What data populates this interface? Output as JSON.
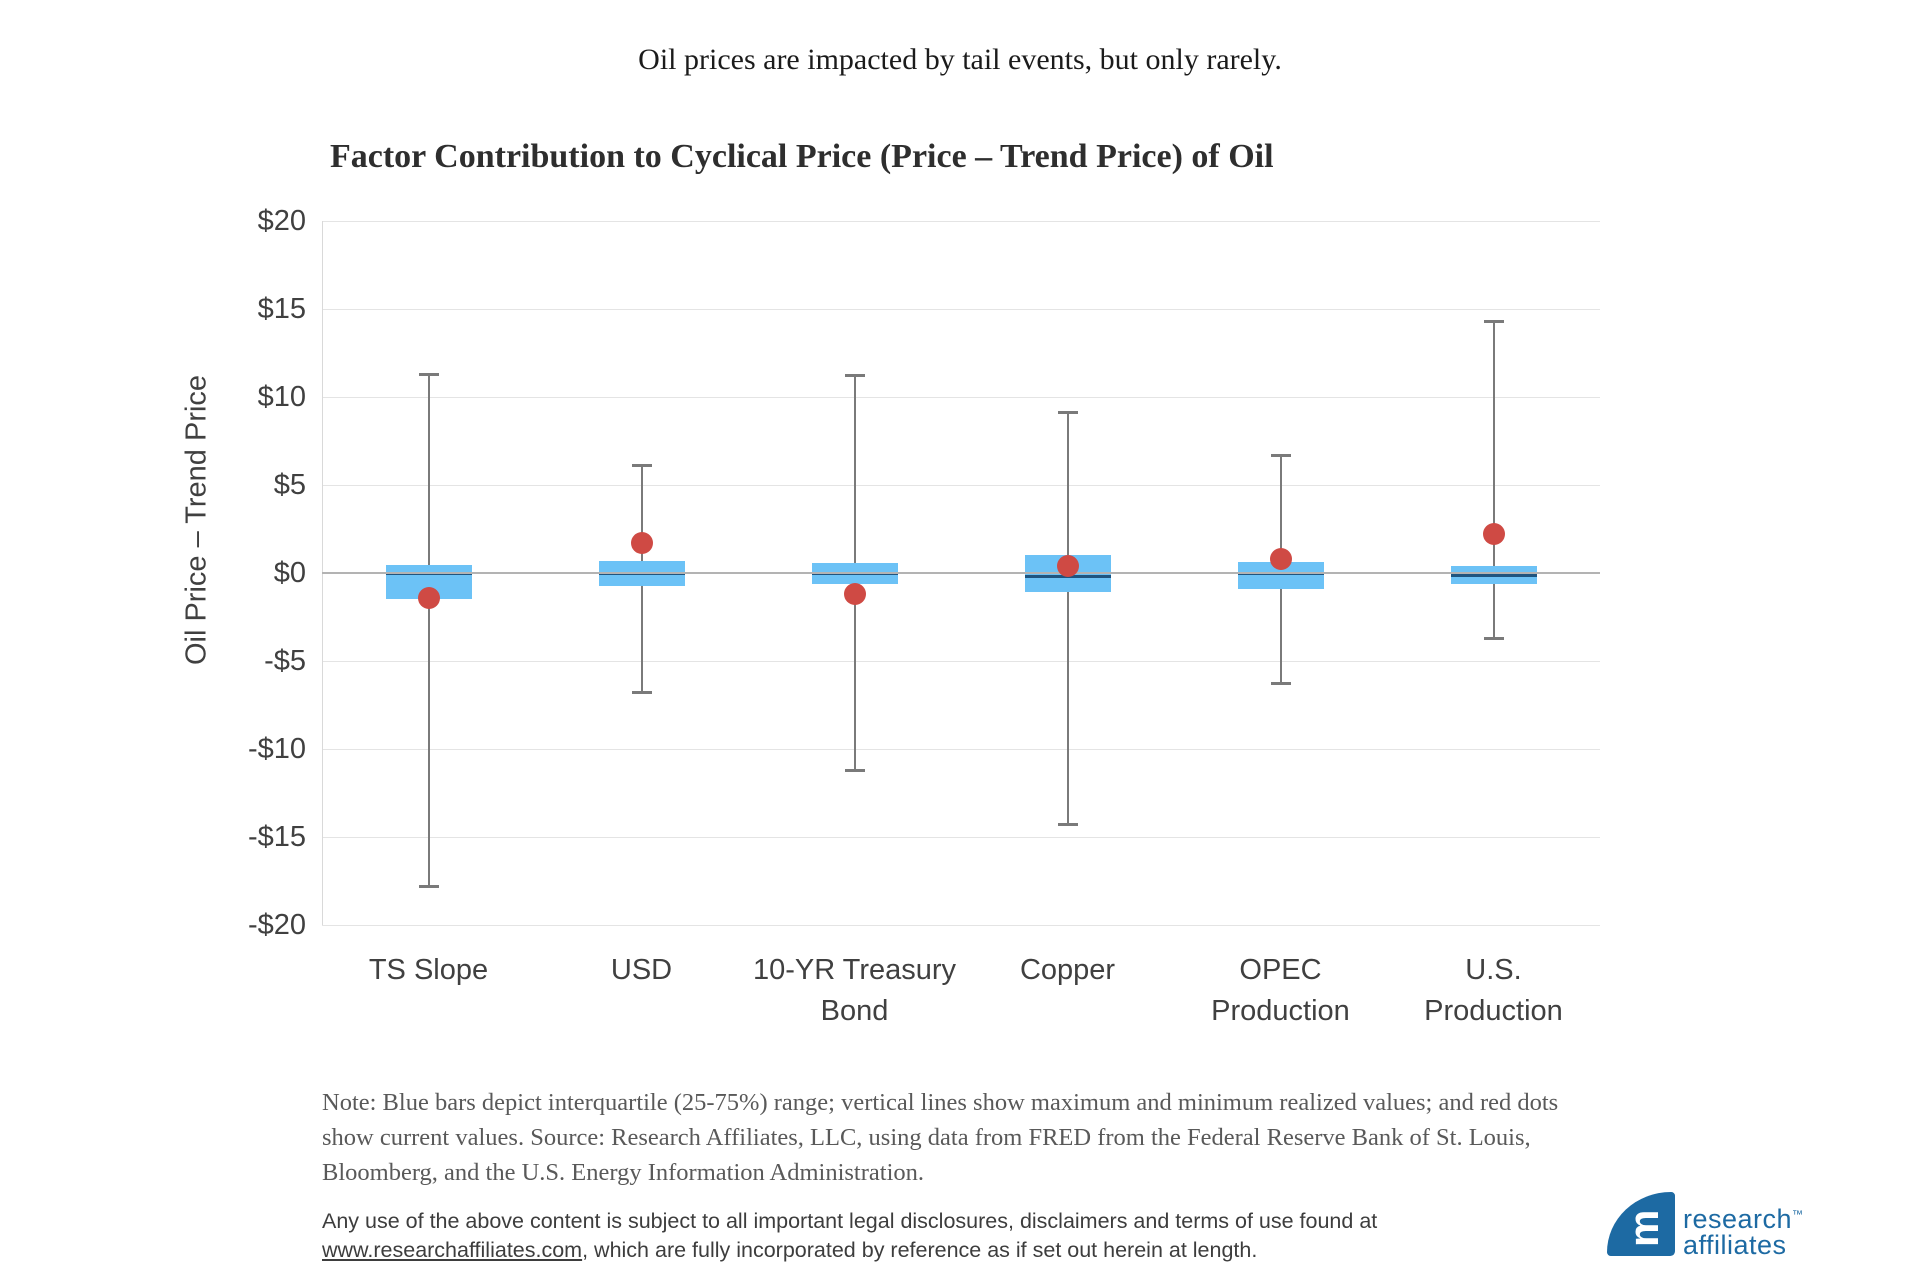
{
  "banner": {
    "text": "Oil prices are impacted by tail events, but only rarely.",
    "bg": "#e7f4dd"
  },
  "chart_data": {
    "type": "boxplot",
    "title": "Factor Contribution to Cyclical Price (Price – Trend Price) of Oil",
    "ylabel": "Oil Price – Trend Price",
    "ylim": [
      -20,
      20
    ],
    "grid": "horizontal",
    "yticks": [
      {
        "value": 20,
        "label": "$20"
      },
      {
        "value": 15,
        "label": "$15"
      },
      {
        "value": 10,
        "label": "$10"
      },
      {
        "value": 5,
        "label": "$5"
      },
      {
        "value": 0,
        "label": "$0"
      },
      {
        "value": -5,
        "label": "-$5"
      },
      {
        "value": -10,
        "label": "-$10"
      },
      {
        "value": -15,
        "label": "-$15"
      },
      {
        "value": -20,
        "label": "-$20"
      }
    ],
    "categories": [
      "TS Slope",
      "USD",
      "10-YR Treasury\nBond",
      "Copper",
      "OPEC\nProduction",
      "U.S.\nProduction"
    ],
    "series": [
      {
        "name": "TS Slope",
        "min": -17.8,
        "q1": -1.5,
        "median": 0.0,
        "q3": 0.45,
        "max": 11.3,
        "current": -1.4
      },
      {
        "name": "USD",
        "min": -6.8,
        "q1": -0.75,
        "median": 0.0,
        "q3": 0.7,
        "max": 6.1,
        "current": 1.7
      },
      {
        "name": "10-YR Treasury Bond",
        "min": -11.2,
        "q1": -0.65,
        "median": 0.0,
        "q3": 0.55,
        "max": 11.2,
        "current": -1.2
      },
      {
        "name": "Copper",
        "min": -14.3,
        "q1": -1.1,
        "median": -0.2,
        "q3": 1.05,
        "max": 9.1,
        "current": 0.4
      },
      {
        "name": "OPEC Production",
        "min": -6.3,
        "q1": -0.9,
        "median": 0.0,
        "q3": 0.6,
        "max": 6.7,
        "current": 0.8
      },
      {
        "name": "U.S. Production",
        "min": -3.7,
        "q1": -0.65,
        "median": -0.12,
        "q3": 0.4,
        "max": 14.3,
        "current": 2.2
      }
    ],
    "colors": {
      "box": "#6cc2f6",
      "median": "#1e5480",
      "whisker": "#7a7a7a",
      "dot": "#cf4a44",
      "gridline": "#e4e4e4",
      "zero_line": "#b3b3b3",
      "axis_line": "#d9d9d9",
      "axis_text": "#404040"
    }
  },
  "note": {
    "lines": [
      "Note: Blue bars depict interquartile (25-75%) range; vertical lines show maximum and minimum realized values; and red dots",
      "show current values.  Source: Research Affiliates, LLC, using data from FRED from the Federal Reserve Bank of St. Louis,",
      "Bloomberg, and the U.S. Energy Information Administration."
    ]
  },
  "disclaimer": {
    "line1": "Any use of the above content is subject to all important legal disclosures, disclaimers and terms of use found at",
    "link_text": "www.researchaffiliates.com",
    "line2_rest": ", which are fully incorporated by reference as if set out herein at length."
  },
  "logo": {
    "monogram": "m",
    "line1": "research",
    "tm": "™",
    "line2": "affiliates",
    "color": "#1d6aa3"
  }
}
